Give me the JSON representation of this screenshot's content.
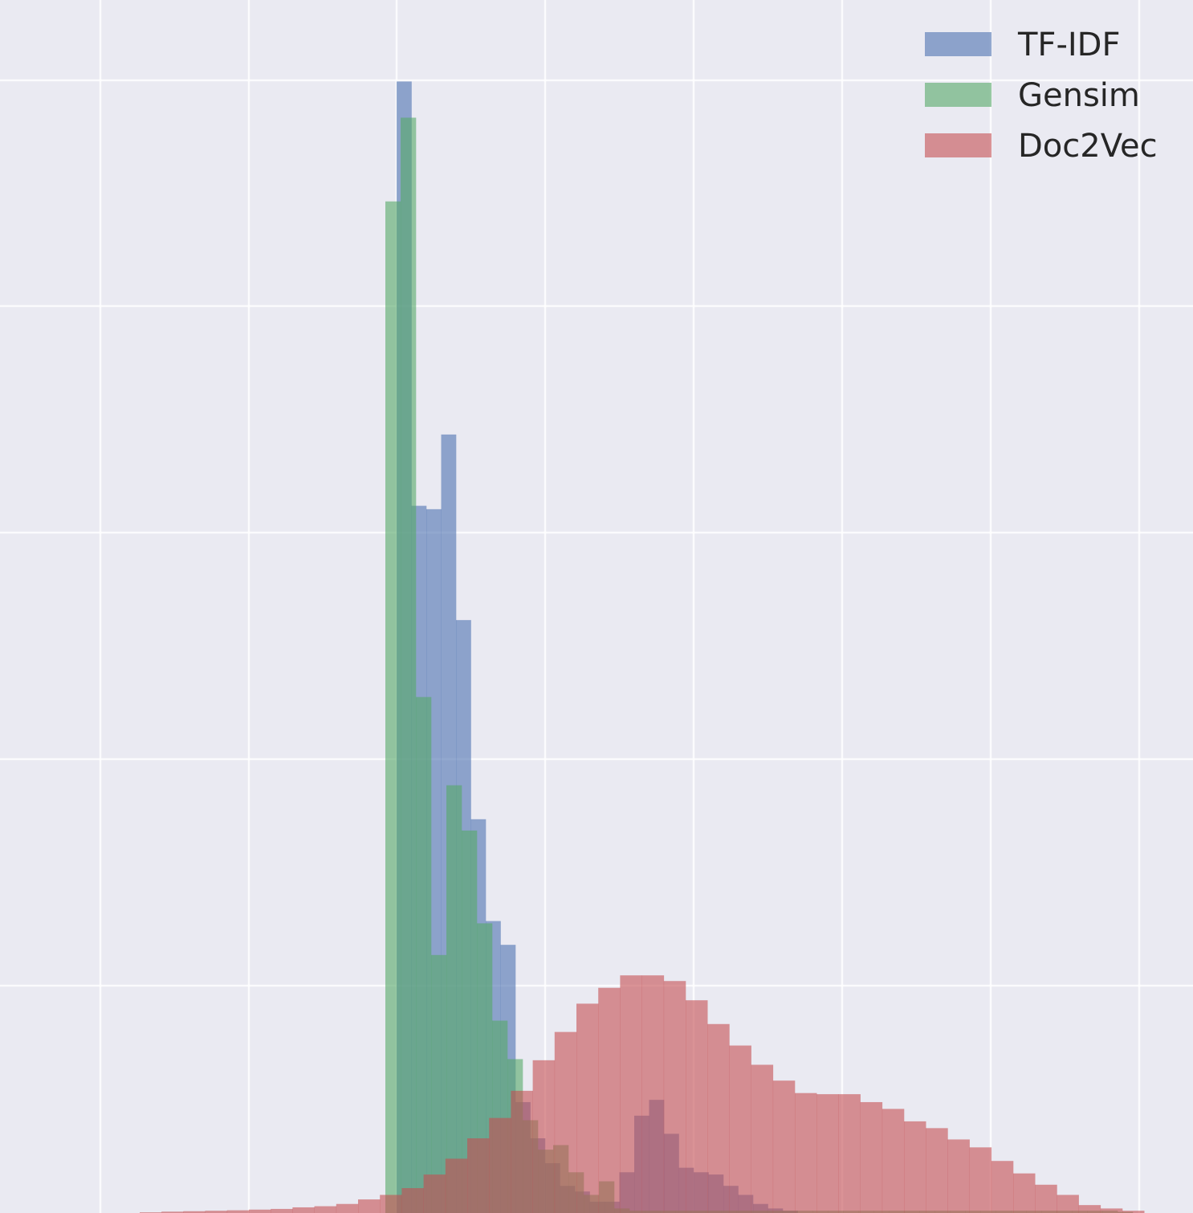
{
  "chart_data": {
    "type": "bar",
    "subtype": "overlapping-histogram",
    "title": "",
    "xlabel": "",
    "ylabel": "",
    "xlim": [
      0,
      1486
    ],
    "ylim": [
      0,
      5360
    ],
    "grid": true,
    "legend_position": "top-right",
    "series": [
      {
        "name": "TF-IDF",
        "color": "#4c72b0",
        "bin_width": 18.5,
        "x": [
          494,
          512.5,
          531,
          549.5,
          568,
          586.5,
          605,
          623.5,
          642,
          660.5,
          679,
          697.5,
          716,
          734.5,
          753,
          771.5,
          790,
          808.5,
          827,
          845.5,
          864,
          882.5,
          901,
          919.5,
          938,
          956.5,
          975
        ],
        "values": [
          5000,
          3125,
          3110,
          3440,
          2620,
          1740,
          1290,
          1185,
          490,
          330,
          220,
          120,
          95,
          50,
          50,
          180,
          430,
          500,
          350,
          200,
          180,
          170,
          120,
          80,
          40,
          20,
          10
        ]
      },
      {
        "name": "Gensim",
        "color": "#55a868",
        "bin_width": 19,
        "x": [
          480,
          499,
          518,
          537,
          556,
          575,
          594,
          613,
          632,
          651,
          670,
          689,
          708,
          727,
          746,
          765,
          784,
          803,
          822,
          841,
          860,
          879,
          898,
          917,
          936,
          955,
          974,
          993,
          1012,
          1031,
          1050,
          1069,
          1088,
          1107,
          1126,
          1145,
          1164,
          1183,
          1202,
          1221,
          1240,
          1259,
          1278,
          1297,
          1316,
          1335,
          1354,
          1373,
          1392
        ],
        "values": [
          4470,
          4840,
          2280,
          1140,
          1890,
          1690,
          1280,
          850,
          680,
          410,
          280,
          300,
          180,
          80,
          140,
          20,
          10,
          10,
          10,
          10,
          10,
          10,
          10,
          10,
          10,
          10,
          10,
          10,
          10,
          10,
          10,
          10,
          10,
          10,
          10,
          10,
          10,
          10,
          10,
          10,
          10,
          10,
          10,
          10,
          10,
          10,
          10,
          10,
          5
        ]
      },
      {
        "name": "Doc2Vec",
        "color": "#c44e52",
        "bin_width": 27.2,
        "x": [
          174,
          201.2,
          228.4,
          255.6,
          282.8,
          310,
          337.2,
          364.4,
          391.6,
          418.8,
          446,
          473.2,
          500.4,
          527.6,
          554.8,
          582,
          609.2,
          636.4,
          663.6,
          690.8,
          718,
          745.2,
          772.4,
          799.6,
          826.8,
          854,
          881.2,
          908.4,
          935.6,
          962.8,
          990,
          1017.2,
          1044.4,
          1071.6,
          1098.8,
          1126,
          1153.2,
          1180.4,
          1207.6,
          1234.8,
          1262,
          1289.2,
          1316.4,
          1343.6,
          1370.8,
          1398
        ],
        "values": [
          3,
          6,
          8,
          10,
          12,
          15,
          18,
          25,
          30,
          40,
          60,
          80,
          110,
          170,
          240,
          330,
          420,
          540,
          675,
          800,
          925,
          995,
          1050,
          1050,
          1025,
          940,
          835,
          740,
          655,
          585,
          530,
          525,
          525,
          490,
          460,
          405,
          375,
          325,
          290,
          230,
          175,
          125,
          80,
          35,
          20,
          10
        ]
      }
    ]
  }
}
